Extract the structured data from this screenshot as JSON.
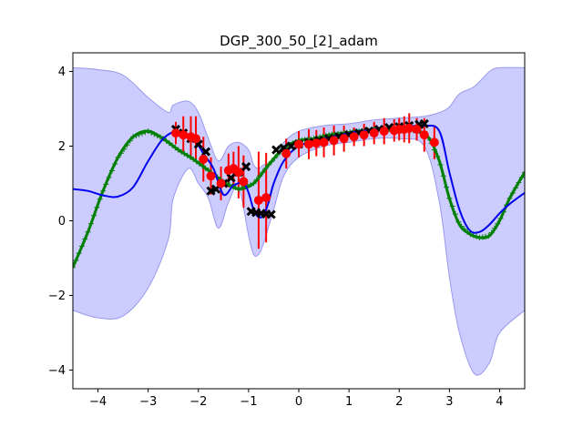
{
  "chart_data": {
    "type": "line",
    "title": "DGP_300_50_[2]_adam",
    "xlabel": "",
    "ylabel": "",
    "xlim": [
      -4.5,
      4.5
    ],
    "ylim": [
      -4.5,
      4.5
    ],
    "xticks": [
      -4,
      -3,
      -2,
      -1,
      0,
      1,
      2,
      3,
      4
    ],
    "yticks": [
      -4,
      -2,
      0,
      2,
      4
    ],
    "xtick_labels": [
      "−4",
      "−3",
      "−2",
      "−1",
      "0",
      "1",
      "2",
      "3",
      "4"
    ],
    "ytick_labels": [
      "−4",
      "−2",
      "0",
      "2",
      "4"
    ],
    "grid": false,
    "colors": {
      "band_fill": "#ccccff",
      "band_edge": "#9999ee",
      "mean": "#0000ee",
      "truth": "#008000",
      "train": "#000000",
      "test": "#ff0000",
      "errorbar": "#ff0000"
    },
    "series": [
      {
        "role": "confidence-band",
        "x": [
          -4.5,
          -4.0,
          -3.5,
          -3.0,
          -2.6,
          -2.5,
          -2.2,
          -2.0,
          -1.8,
          -1.6,
          -1.4,
          -1.2,
          -1.0,
          -0.9,
          -0.8,
          -0.7,
          -0.5,
          -0.3,
          0.0,
          0.5,
          1.0,
          1.5,
          2.0,
          2.5,
          2.8,
          3.0,
          3.2,
          3.5,
          3.8,
          4.0,
          4.5
        ],
        "upper": [
          4.1,
          4.05,
          3.9,
          3.3,
          2.9,
          3.1,
          3.2,
          2.9,
          2.2,
          1.6,
          2.0,
          2.1,
          1.9,
          1.5,
          1.4,
          1.5,
          1.6,
          2.1,
          2.4,
          2.55,
          2.6,
          2.7,
          2.75,
          2.8,
          2.9,
          3.05,
          3.4,
          3.6,
          4.0,
          4.1,
          4.1
        ],
        "lower": [
          -2.4,
          -2.6,
          -2.55,
          -1.8,
          -0.5,
          0.6,
          1.4,
          1.0,
          0.6,
          -0.2,
          0.5,
          0.9,
          -0.4,
          -0.9,
          -0.9,
          -0.6,
          0.3,
          1.2,
          1.7,
          2.0,
          2.1,
          2.2,
          2.2,
          2.0,
          0.5,
          -1.5,
          -3.0,
          -4.1,
          -3.8,
          -3.0,
          -2.4
        ]
      },
      {
        "role": "predictive-mean",
        "x": [
          -4.5,
          -4.2,
          -3.9,
          -3.6,
          -3.3,
          -3.0,
          -2.7,
          -2.4,
          -2.1,
          -1.9,
          -1.7,
          -1.5,
          -1.3,
          -1.1,
          -1.0,
          -0.9,
          -0.8,
          -0.7,
          -0.6,
          -0.5,
          -0.3,
          0.0,
          0.5,
          1.0,
          1.5,
          2.0,
          2.5,
          2.8,
          3.0,
          3.2,
          3.4,
          3.6,
          3.8,
          4.0,
          4.2,
          4.5
        ],
        "y": [
          0.85,
          0.8,
          0.68,
          0.65,
          0.9,
          1.6,
          2.2,
          2.4,
          2.2,
          1.8,
          1.4,
          0.7,
          0.95,
          1.0,
          0.75,
          0.3,
          0.1,
          0.15,
          0.5,
          1.0,
          1.6,
          2.0,
          2.2,
          2.35,
          2.45,
          2.5,
          2.55,
          2.4,
          1.3,
          0.3,
          -0.25,
          -0.3,
          -0.1,
          0.2,
          0.45,
          0.75
        ]
      },
      {
        "role": "true-function",
        "x": [
          -4.5,
          -4.2,
          -3.9,
          -3.6,
          -3.3,
          -3.0,
          -2.7,
          -2.4,
          -2.1,
          -1.8,
          -1.5,
          -1.2,
          -0.9,
          -0.6,
          -0.3,
          0.0,
          0.3,
          0.6,
          0.9,
          1.2,
          1.5,
          1.8,
          2.1,
          2.4,
          2.6,
          2.8,
          3.0,
          3.2,
          3.4,
          3.6,
          3.8,
          4.0,
          4.2,
          4.5
        ],
        "y": [
          -1.25,
          -0.3,
          0.8,
          1.7,
          2.25,
          2.4,
          2.2,
          1.9,
          1.65,
          1.35,
          1.05,
          0.85,
          1.0,
          1.5,
          1.95,
          2.15,
          2.2,
          2.3,
          2.35,
          2.4,
          2.45,
          2.45,
          2.45,
          2.4,
          2.2,
          1.6,
          0.6,
          -0.1,
          -0.35,
          -0.45,
          -0.4,
          0.0,
          0.6,
          1.3
        ]
      },
      {
        "role": "training-points",
        "x": [
          -2.45,
          -2.3,
          -2.15,
          -2.0,
          -1.85,
          -1.75,
          -1.65,
          -1.5,
          -1.35,
          -1.2,
          -1.05,
          -0.95,
          -0.85,
          -0.75,
          -0.65,
          -0.55,
          -0.45,
          -0.3,
          -0.15,
          0.0,
          0.2,
          0.4,
          0.6,
          0.8,
          1.0,
          1.2,
          1.4,
          1.6,
          1.8,
          2.0,
          2.2,
          2.4,
          2.5
        ],
        "y": [
          2.45,
          2.35,
          2.2,
          2.05,
          1.85,
          0.8,
          0.85,
          1.0,
          1.15,
          1.3,
          1.45,
          0.25,
          0.22,
          0.2,
          0.18,
          0.17,
          1.9,
          1.95,
          2.0,
          2.05,
          2.1,
          2.15,
          2.2,
          2.25,
          2.3,
          2.35,
          2.4,
          2.45,
          2.5,
          2.52,
          2.55,
          2.58,
          2.6
        ]
      },
      {
        "role": "test-points",
        "x": [
          -2.45,
          -2.3,
          -2.15,
          -2.05,
          -1.9,
          -1.75,
          -1.55,
          -1.4,
          -1.3,
          -1.2,
          -1.1,
          -0.8,
          -0.65,
          -0.25,
          0.0,
          0.2,
          0.35,
          0.5,
          0.7,
          0.9,
          1.1,
          1.3,
          1.5,
          1.7,
          1.9,
          2.0,
          2.1,
          2.2,
          2.35,
          2.5,
          2.7
        ],
        "y": [
          2.35,
          2.3,
          2.25,
          2.2,
          1.65,
          1.2,
          1.0,
          1.35,
          1.4,
          1.3,
          1.05,
          0.55,
          0.62,
          1.8,
          2.05,
          2.05,
          2.08,
          2.1,
          2.15,
          2.2,
          2.25,
          2.3,
          2.35,
          2.4,
          2.42,
          2.45,
          2.45,
          2.48,
          2.45,
          2.3,
          2.1
        ],
        "err": [
          0.3,
          0.5,
          0.55,
          0.6,
          0.6,
          0.5,
          0.45,
          0.45,
          0.45,
          0.7,
          0.7,
          1.3,
          1.2,
          0.4,
          0.35,
          0.4,
          0.35,
          0.4,
          0.4,
          0.35,
          0.25,
          0.3,
          0.3,
          0.35,
          0.3,
          0.3,
          0.35,
          0.4,
          0.3,
          0.45,
          0.45
        ]
      }
    ]
  }
}
